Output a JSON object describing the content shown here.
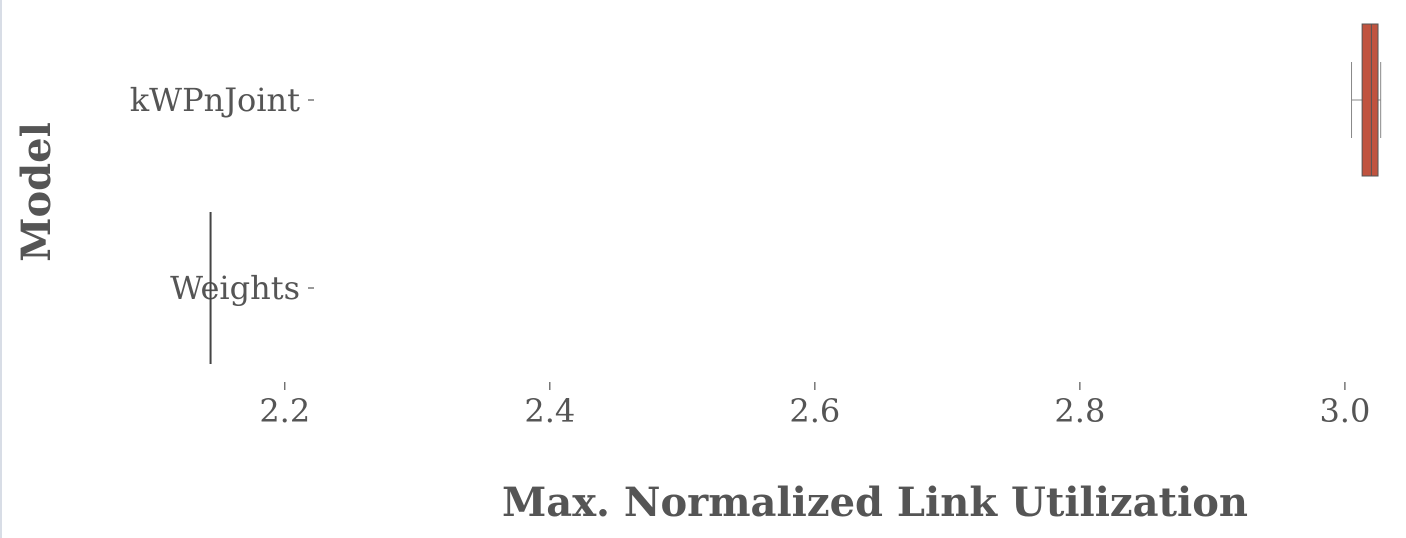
{
  "chart_data": {
    "type": "boxplot",
    "orientation": "horizontal",
    "xlabel": "Max. Normalized Link Utilization",
    "ylabel": "Model",
    "xlim": [
      2.05,
      3.028
    ],
    "xticks": [
      {
        "value": 2.2,
        "label": "2.2"
      },
      {
        "value": 2.4,
        "label": "2.4"
      },
      {
        "value": 2.6,
        "label": "2.6"
      },
      {
        "value": 2.8,
        "label": "2.8"
      },
      {
        "value": 3.0,
        "label": "3.0"
      }
    ],
    "categories": [
      "kWPnJoint",
      "Weights"
    ],
    "series": [
      {
        "category": "kWPnJoint",
        "whisker_low": 3.005,
        "q1": 3.013,
        "median": 3.02,
        "q3": 3.025,
        "whisker_high": 3.027,
        "color": "#c0533f"
      },
      {
        "category": "Weights",
        "whisker_low": 2.144,
        "q1": 2.144,
        "median": 2.144,
        "q3": 2.144,
        "whisker_high": 2.144,
        "color": "#444444"
      }
    ],
    "grid": false,
    "legend": "none"
  }
}
